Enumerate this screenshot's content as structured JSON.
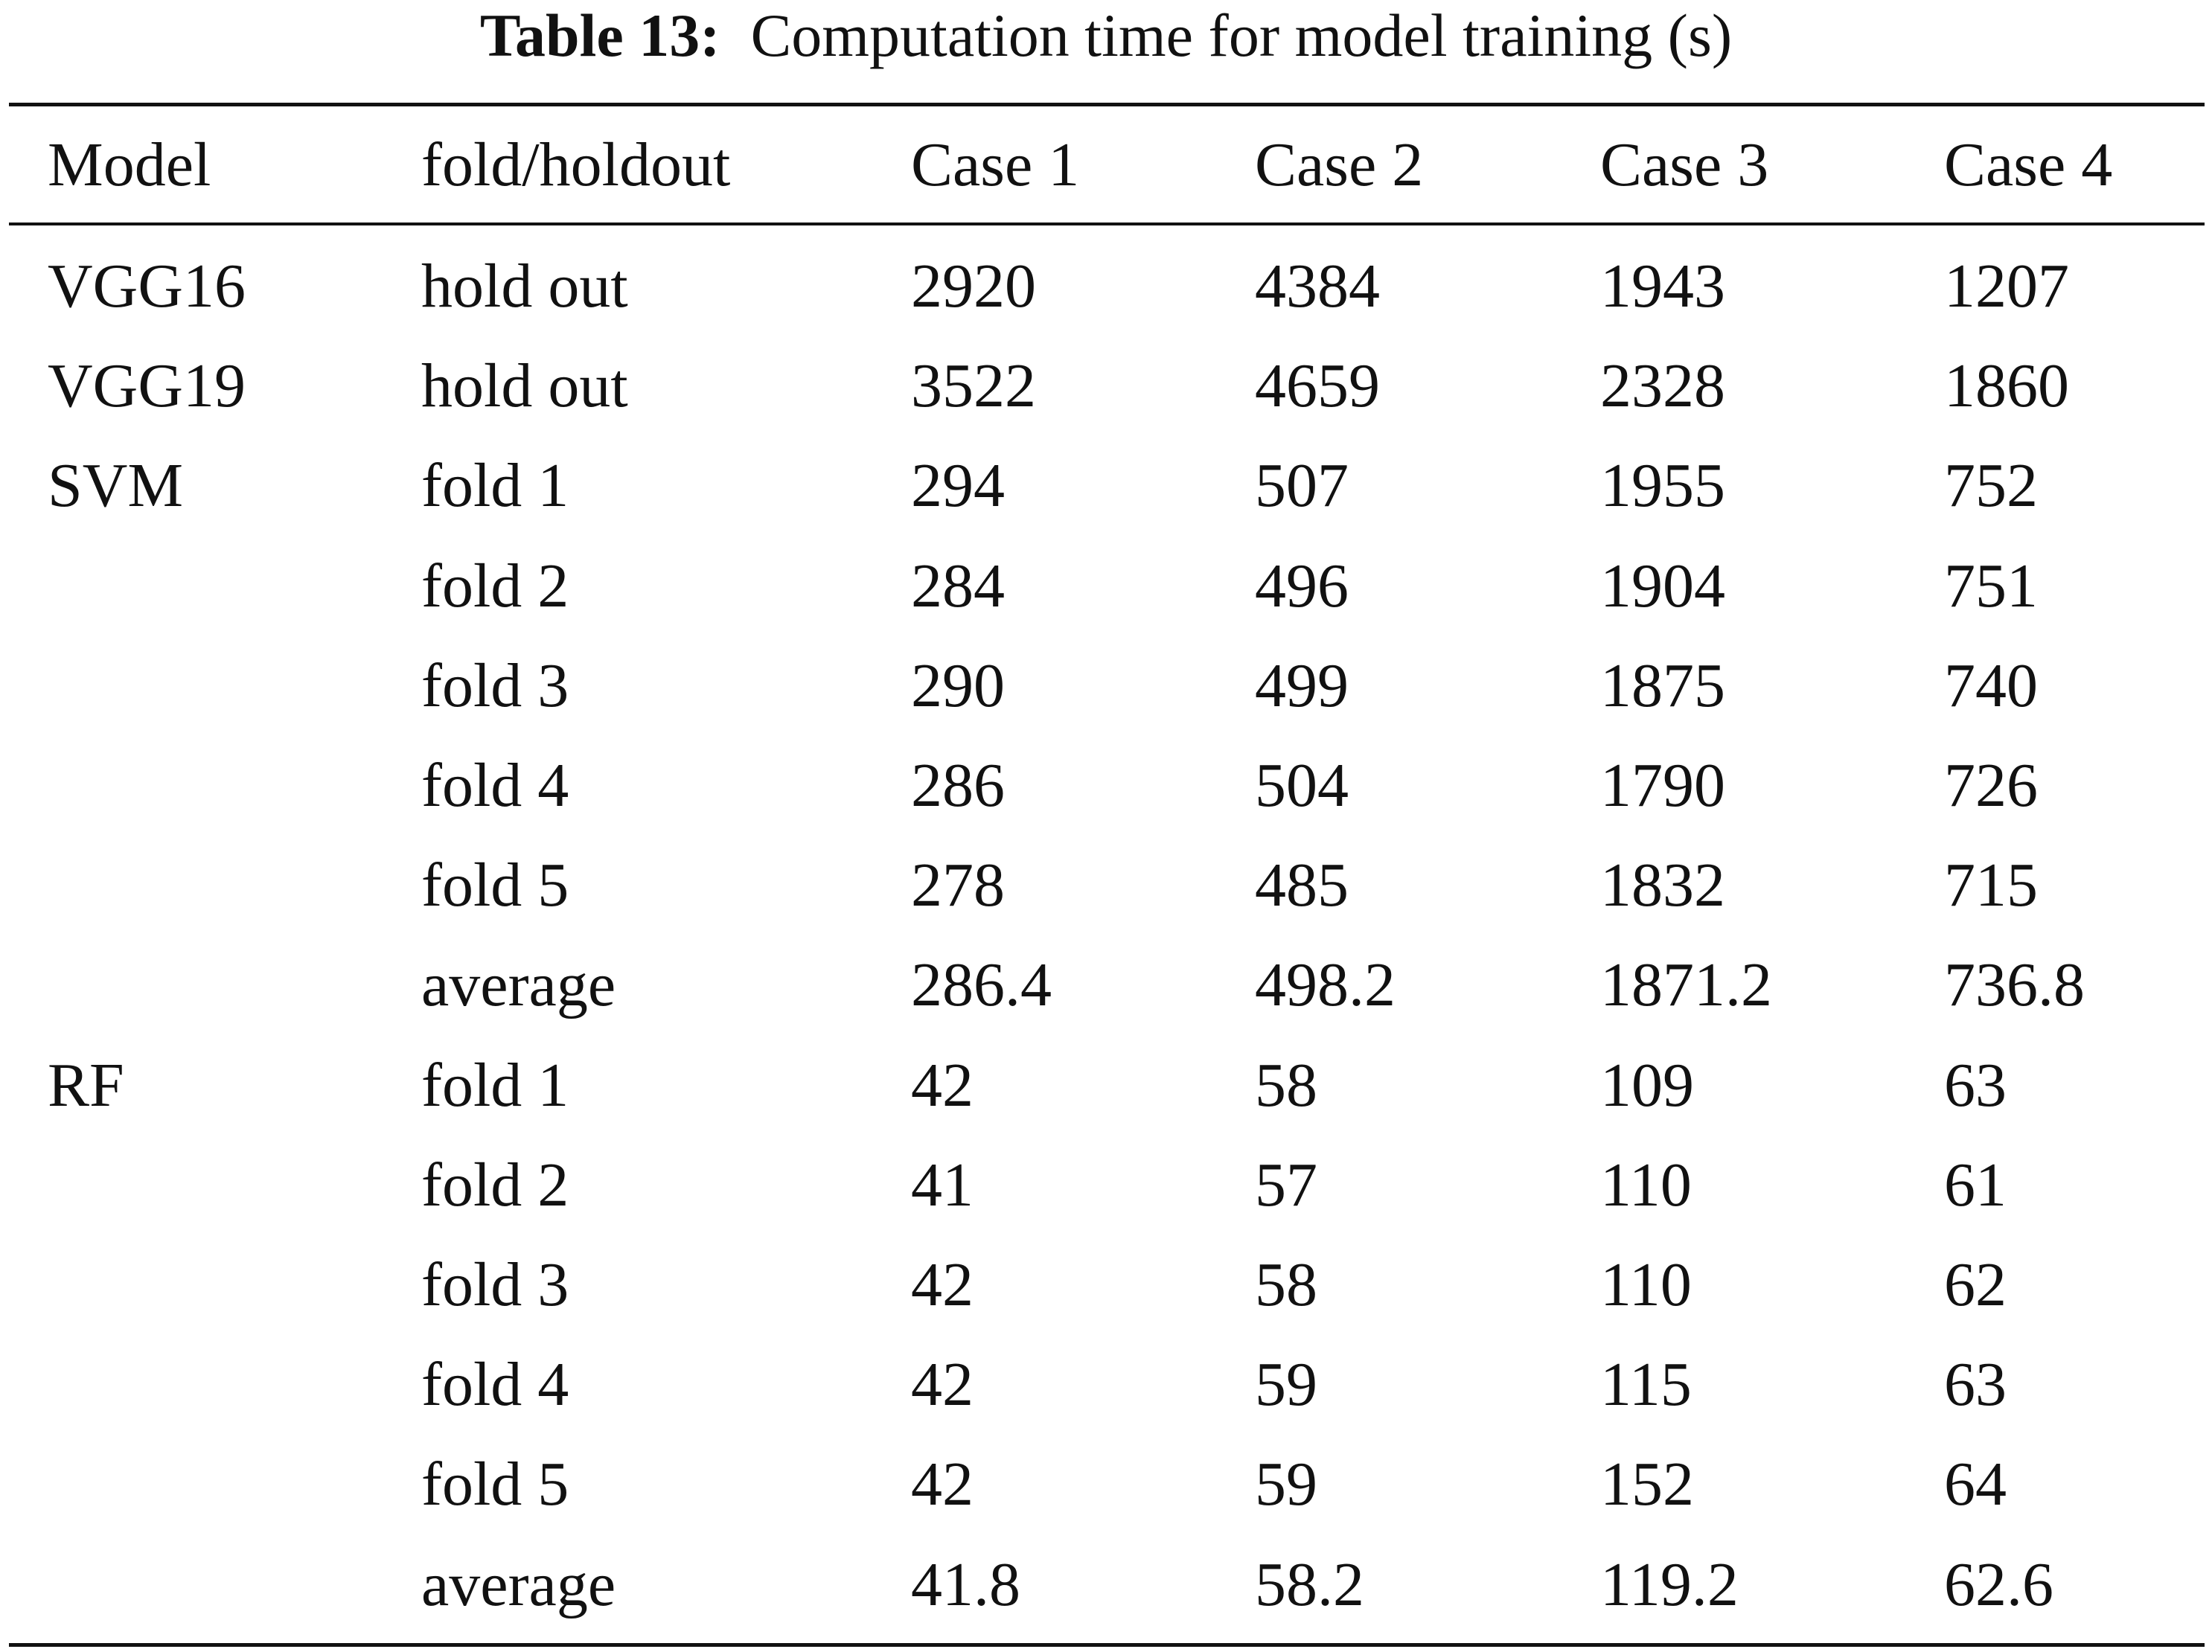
{
  "caption": {
    "label": "Table 13:",
    "text": "Computation time for model training (s)"
  },
  "table": {
    "columns": [
      "Model",
      "fold/holdout",
      "Case 1",
      "Case 2",
      "Case 3",
      "Case 4"
    ],
    "rows": [
      [
        "VGG16",
        "hold out",
        "2920",
        "4384",
        "1943",
        "1207"
      ],
      [
        "VGG19",
        "hold out",
        "3522",
        "4659",
        "2328",
        "1860"
      ],
      [
        "SVM",
        "fold 1",
        "294",
        "507",
        "1955",
        "752"
      ],
      [
        "",
        "fold 2",
        "284",
        "496",
        "1904",
        "751"
      ],
      [
        "",
        "fold 3",
        "290",
        "499",
        "1875",
        "740"
      ],
      [
        "",
        "fold 4",
        "286",
        "504",
        "1790",
        "726"
      ],
      [
        "",
        "fold 5",
        "278",
        "485",
        "1832",
        "715"
      ],
      [
        "",
        "average",
        "286.4",
        "498.2",
        "1871.2",
        "736.8"
      ],
      [
        "RF",
        "fold 1",
        "42",
        "58",
        "109",
        "63"
      ],
      [
        "",
        "fold 2",
        "41",
        "57",
        "110",
        "61"
      ],
      [
        "",
        "fold 3",
        "42",
        "58",
        "110",
        "62"
      ],
      [
        "",
        "fold 4",
        "42",
        "59",
        "115",
        "63"
      ],
      [
        "",
        "fold 5",
        "42",
        "59",
        "152",
        "64"
      ],
      [
        "",
        "average",
        "41.8",
        "58.2",
        "119.2",
        "62.6"
      ]
    ]
  }
}
